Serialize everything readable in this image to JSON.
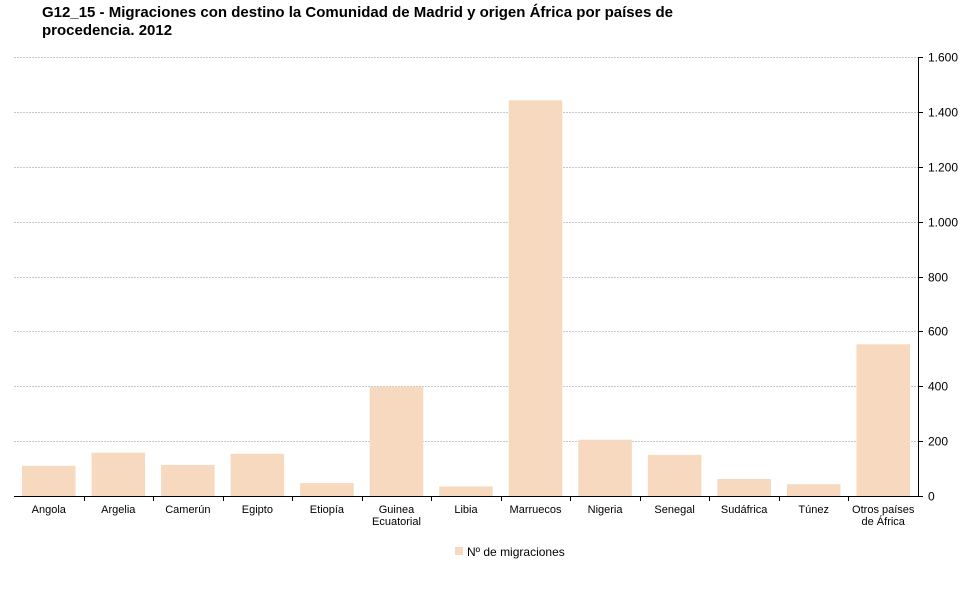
{
  "chart_data": {
    "type": "bar",
    "title": "G12_15 - Migraciones con destino la Comunidad de Madrid y origen África por países de procedencia. 2012",
    "title_lines": [
      "G12_15 - Migraciones con destino la Comunidad de Madrid y origen África por países de",
      "procedencia. 2012"
    ],
    "categories": [
      [
        "Angola"
      ],
      [
        "Argelia"
      ],
      [
        "Camerún"
      ],
      [
        "Egipto"
      ],
      [
        "Etiopía"
      ],
      [
        "Guinea",
        "Ecuatorial"
      ],
      [
        "Libia"
      ],
      [
        "Marruecos"
      ],
      [
        "Nigeria"
      ],
      [
        "Senegal"
      ],
      [
        "Sudáfrica"
      ],
      [
        "Túnez"
      ],
      [
        "Otros países",
        "de África"
      ]
    ],
    "series": [
      {
        "name": "Nº de migraciones",
        "values": [
          110,
          158,
          113,
          154,
          47,
          398,
          35,
          1442,
          205,
          150,
          62,
          43,
          553
        ]
      }
    ],
    "ylim": [
      0,
      1600
    ],
    "yticks": [
      0,
      200,
      400,
      600,
      800,
      1000,
      1200,
      1400,
      1600
    ],
    "ytick_labels": [
      "0",
      "200",
      "400",
      "600",
      "800",
      "1.000",
      "1.200",
      "1.400",
      "1.600"
    ],
    "y_axis_side": "right",
    "grid": true,
    "legend_position": "bottom",
    "colors": {
      "bar": "#f7d9bf",
      "grid": "#c8c8c8",
      "axis": "#000000"
    }
  }
}
